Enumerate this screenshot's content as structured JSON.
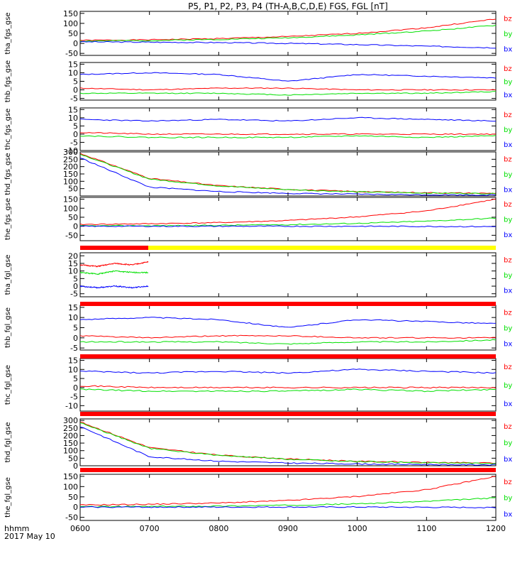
{
  "title": "P5, P1, P2, P3, P4 (TH-A,B,C,D,E) FGS, FGL [nT]",
  "footer": {
    "axis_label": "hhmm",
    "date": "2017 May 10"
  },
  "colors": {
    "bx": "#0000ff",
    "by": "#00e000",
    "bz": "#ff0000",
    "flag_red": "#ff0000",
    "flag_yellow": "#ffff00",
    "axis": "#000000"
  },
  "x_ticks": [
    "0600",
    "0700",
    "0800",
    "0900",
    "1000",
    "1100",
    "1200"
  ],
  "chart_data": [
    {
      "type": "line",
      "ylabel": "tha_fgs_gse",
      "ylim": [
        -60,
        160
      ],
      "y_ticks": [
        "150",
        "100",
        "50",
        "0",
        "-50"
      ],
      "y_tick_values": [
        150,
        100,
        50,
        0,
        -50
      ],
      "x": [
        "0600",
        "0700",
        "0800",
        "0900",
        "1000",
        "1100",
        "1200"
      ],
      "series": [
        {
          "name": "bz",
          "values": [
            15,
            18,
            24,
            34,
            50,
            78,
            122
          ]
        },
        {
          "name": "by",
          "values": [
            12,
            14,
            20,
            28,
            42,
            62,
            90
          ]
        },
        {
          "name": "bx",
          "values": [
            8,
            6,
            4,
            0,
            -6,
            -14,
            -22
          ]
        }
      ]
    },
    {
      "type": "line",
      "ylabel": "thb_fgs_gse",
      "ylim": [
        -6,
        16
      ],
      "y_ticks": [
        "15",
        "10",
        "5",
        "0",
        "-5"
      ],
      "y_tick_values": [
        15,
        10,
        5,
        0,
        -5
      ],
      "x": [
        "0600",
        "0700",
        "0800",
        "0900",
        "1000",
        "1100",
        "1200"
      ],
      "series": [
        {
          "name": "bz",
          "values": [
            1,
            0,
            1,
            1,
            0,
            0,
            0
          ]
        },
        {
          "name": "by",
          "values": [
            -2,
            -2,
            -2,
            -3,
            -2,
            -2,
            -1
          ]
        },
        {
          "name": "bx",
          "values": [
            9,
            10,
            9,
            5,
            9,
            8,
            7
          ]
        }
      ]
    },
    {
      "type": "line",
      "ylabel": "thc_fgs_gse",
      "ylim": [
        -10,
        16
      ],
      "y_ticks": [
        "15",
        "10",
        "5",
        "0",
        "-5",
        "-10"
      ],
      "y_tick_values": [
        15,
        10,
        5,
        0,
        -5,
        -10
      ],
      "x": [
        "0600",
        "0700",
        "0800",
        "0900",
        "1000",
        "1100",
        "1200"
      ],
      "series": [
        {
          "name": "bz",
          "values": [
            1,
            0,
            0,
            0,
            0,
            0,
            0
          ]
        },
        {
          "name": "by",
          "values": [
            -1,
            -2,
            -2,
            -2,
            -1,
            -2,
            -1
          ]
        },
        {
          "name": "bx",
          "values": [
            9,
            8,
            9,
            8,
            10,
            9,
            8
          ]
        }
      ]
    },
    {
      "type": "line",
      "ylabel": "thd_fgs_gse",
      "ylim": [
        0,
        300
      ],
      "y_ticks": [
        "300",
        "250",
        "200",
        "150",
        "100",
        "50"
      ],
      "y_tick_values": [
        300,
        250,
        200,
        150,
        100,
        50
      ],
      "x": [
        "0600",
        "0700",
        "0800",
        "0900",
        "1000",
        "1100",
        "1200"
      ],
      "series": [
        {
          "name": "bz",
          "values": [
            290,
            120,
            70,
            45,
            30,
            22,
            18
          ]
        },
        {
          "name": "by",
          "values": [
            285,
            115,
            68,
            43,
            28,
            20,
            16
          ]
        },
        {
          "name": "bx",
          "values": [
            260,
            60,
            30,
            18,
            12,
            8,
            6
          ]
        }
      ]
    },
    {
      "type": "line",
      "ylabel": "the_fgs_gse",
      "ylim": [
        -80,
        160
      ],
      "y_ticks": [
        "150",
        "100",
        "50",
        "0",
        "-50"
      ],
      "y_tick_values": [
        150,
        100,
        50,
        0,
        -50
      ],
      "x": [
        "0600",
        "0700",
        "0800",
        "0900",
        "1000",
        "1100",
        "1200"
      ],
      "series": [
        {
          "name": "bz",
          "values": [
            10,
            14,
            20,
            32,
            52,
            85,
            150
          ]
        },
        {
          "name": "by",
          "values": [
            2,
            3,
            5,
            9,
            16,
            28,
            45
          ]
        },
        {
          "name": "bx",
          "values": [
            0,
            0,
            0,
            0,
            0,
            -1,
            -2
          ]
        }
      ]
    },
    {
      "type": "line",
      "ylabel": "tha_fgl_gse",
      "ylim": [
        -7,
        22
      ],
      "y_ticks": [
        "20",
        "15",
        "10",
        "5",
        "0",
        "-5"
      ],
      "y_tick_values": [
        20,
        15,
        10,
        5,
        0,
        -5
      ],
      "x": [
        "0600",
        "0615",
        "0630",
        "0645",
        "0659"
      ],
      "series": [
        {
          "name": "bz",
          "values": [
            14,
            13,
            15,
            14,
            16
          ]
        },
        {
          "name": "by",
          "values": [
            9,
            8,
            10,
            9,
            9
          ]
        },
        {
          "name": "bx",
          "values": [
            0,
            -1,
            0,
            -1,
            0
          ]
        }
      ]
    },
    {
      "type": "line",
      "ylabel": "thb_fgl_gse",
      "ylim": [
        -6,
        16
      ],
      "y_ticks": [
        "15",
        "10",
        "5",
        "0",
        "-5"
      ],
      "y_tick_values": [
        15,
        10,
        5,
        0,
        -5
      ],
      "x": [
        "0600",
        "0700",
        "0800",
        "0900",
        "1000",
        "1100",
        "1200"
      ],
      "series": [
        {
          "name": "bz",
          "values": [
            1,
            0,
            1,
            1,
            0,
            0,
            0
          ]
        },
        {
          "name": "by",
          "values": [
            -2,
            -2,
            -2,
            -3,
            -2,
            -2,
            -1
          ]
        },
        {
          "name": "bx",
          "values": [
            9,
            10,
            9,
            5,
            9,
            8,
            7
          ]
        }
      ]
    },
    {
      "type": "line",
      "ylabel": "thc_fgl_gse",
      "ylim": [
        -13,
        16
      ],
      "y_ticks": [
        "15",
        "10",
        "5",
        "0",
        "-5",
        "-10"
      ],
      "y_tick_values": [
        15,
        10,
        5,
        0,
        -5,
        -10
      ],
      "x": [
        "0600",
        "0700",
        "0800",
        "0900",
        "1000",
        "1100",
        "1200"
      ],
      "series": [
        {
          "name": "bz",
          "values": [
            1,
            0,
            0,
            0,
            0,
            0,
            0
          ]
        },
        {
          "name": "by",
          "values": [
            -1,
            -2,
            -2,
            -2,
            -1,
            -2,
            -1
          ]
        },
        {
          "name": "bx",
          "values": [
            9,
            8,
            9,
            8,
            10,
            9,
            8
          ]
        }
      ]
    },
    {
      "type": "line",
      "ylabel": "thd_fgl_gse",
      "ylim": [
        0,
        310
      ],
      "y_ticks": [
        "300",
        "250",
        "200",
        "150",
        "100",
        "50",
        "0"
      ],
      "y_tick_values": [
        300,
        250,
        200,
        150,
        100,
        50,
        0
      ],
      "x": [
        "0600",
        "0700",
        "0800",
        "0900",
        "1000",
        "1100",
        "1200"
      ],
      "series": [
        {
          "name": "bz",
          "values": [
            290,
            120,
            70,
            45,
            30,
            22,
            18
          ]
        },
        {
          "name": "by",
          "values": [
            285,
            115,
            68,
            43,
            28,
            20,
            16
          ]
        },
        {
          "name": "bx",
          "values": [
            260,
            60,
            30,
            18,
            12,
            8,
            6
          ]
        }
      ]
    },
    {
      "type": "line",
      "ylabel": "the_fgl_gse",
      "ylim": [
        -65,
        160
      ],
      "y_ticks": [
        "150",
        "100",
        "50",
        "0",
        "-50"
      ],
      "y_tick_values": [
        150,
        100,
        50,
        0,
        -50
      ],
      "x": [
        "0600",
        "0700",
        "0800",
        "0900",
        "1000",
        "1100",
        "1200"
      ],
      "series": [
        {
          "name": "bz",
          "values": [
            10,
            14,
            20,
            32,
            52,
            85,
            150
          ]
        },
        {
          "name": "by",
          "values": [
            2,
            3,
            5,
            9,
            16,
            28,
            45
          ]
        },
        {
          "name": "bx",
          "values": [
            0,
            0,
            0,
            0,
            0,
            -1,
            -2
          ]
        }
      ]
    }
  ],
  "flag_bars": [
    {
      "segments": [
        {
          "from": "0600",
          "to": "0659",
          "color": "#ff0000"
        },
        {
          "from": "0659",
          "to": "1200",
          "color": "#ffff00"
        }
      ]
    },
    {
      "segments": [
        {
          "from": "0600",
          "to": "1200",
          "color": "#ff0000"
        }
      ]
    },
    {
      "segments": [
        {
          "from": "0600",
          "to": "1200",
          "color": "#ff0000"
        }
      ]
    },
    {
      "segments": [
        {
          "from": "0600",
          "to": "1200",
          "color": "#ff0000"
        }
      ]
    },
    {
      "segments": [
        {
          "from": "0600",
          "to": "1200",
          "color": "#ff0000"
        }
      ]
    }
  ]
}
